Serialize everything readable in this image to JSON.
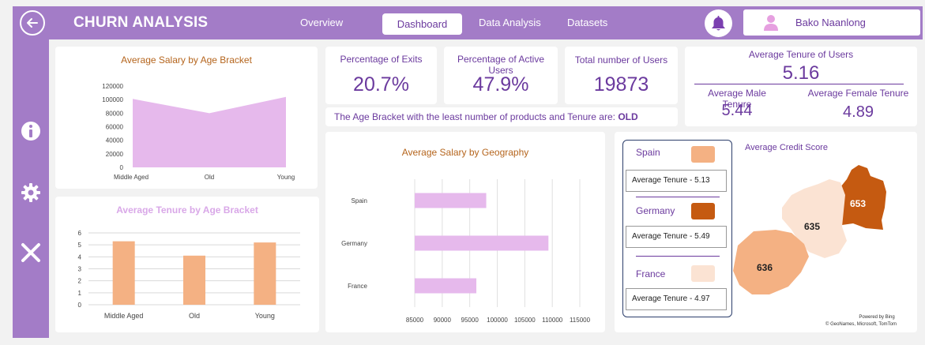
{
  "header": {
    "app_title": "CHURN ANALYSIS",
    "nav": [
      "Overview",
      "Dashboard",
      "Data Analysis",
      "Datasets"
    ],
    "active_nav": "Dashboard",
    "user_name": "Bako Naanlong",
    "icons": {
      "back": "back-arrow-icon",
      "bell": "bell-icon",
      "user": "user-icon"
    }
  },
  "sidebar": {
    "icons": [
      "info-icon",
      "gear-icon",
      "close-icon"
    ]
  },
  "colors": {
    "accent": "#a37cc7",
    "purple_text": "#6b3a9e",
    "bar_orange": "#f4b183",
    "bar_pink": "#e6b9ec",
    "area_pink": "#e6b9ec"
  },
  "kpis": {
    "exits_label": "Percentage of Exits",
    "exits_value": "20.7%",
    "active_label": "Percentage of Active Users",
    "active_value": "47.9%",
    "total_label": "Total number of Users",
    "total_value": "19873"
  },
  "tenure_card": {
    "title": "Average Tenure of Users",
    "value": "5.16",
    "male_label": "Average Male Tenure",
    "male_value": "5.44",
    "female_label": "Average Female Tenure",
    "female_value": "4.89"
  },
  "least_bracket": {
    "text": "The Age Bracket with the least number of products and Tenure are: ",
    "value": "OLD"
  },
  "chart_data": [
    {
      "type": "area",
      "title": "Average Salary by Age Bracket",
      "categories": [
        "Middle Aged",
        "Old",
        "Young"
      ],
      "values": [
        101000,
        80000,
        104000
      ],
      "ylim": [
        0,
        120000
      ],
      "yticks": [
        "0",
        "20000",
        "40000",
        "60000",
        "80000",
        "100000",
        "120000"
      ],
      "grid": false
    },
    {
      "type": "bar",
      "title": "Average Tenure by Age Bracket",
      "categories": [
        "Middle Aged",
        "Old",
        "Young"
      ],
      "values": [
        5.3,
        4.1,
        5.2
      ],
      "ylim": [
        0,
        6
      ],
      "yticks": [
        "0",
        "1",
        "2",
        "3",
        "4",
        "5",
        "6"
      ],
      "grid": true
    },
    {
      "type": "bar",
      "orientation": "horizontal",
      "title": "Average Salary by Geography",
      "categories": [
        "Spain",
        "Germany",
        "France"
      ],
      "values": [
        98000,
        109300,
        96200
      ],
      "xlim": [
        85000,
        115000
      ],
      "xticks": [
        "85000",
        "90000",
        "95000",
        "100000",
        "105000",
        "110000",
        "115000"
      ],
      "grid": true
    }
  ],
  "credit_map": {
    "title": "Average Credit Score",
    "regions": [
      {
        "name": "Spain",
        "score": "636",
        "color": "#f4b183"
      },
      {
        "name": "France",
        "score": "635",
        "color": "#fbe3d3"
      },
      {
        "name": "Germany",
        "score": "653",
        "color": "#c55a11"
      }
    ],
    "legend": [
      {
        "name": "Spain",
        "color": "#f4b183",
        "tenure": "Average Tenure - 5.13"
      },
      {
        "name": "Germany",
        "color": "#c55a11",
        "tenure": "Average Tenure - 5.49"
      },
      {
        "name": "France",
        "color": "#fbe3d3",
        "tenure": "Average Tenure - 4.97"
      }
    ],
    "credit_line1": "Powered by Bing",
    "credit_line2": "© GeoNames, Microsoft, TomTom"
  }
}
